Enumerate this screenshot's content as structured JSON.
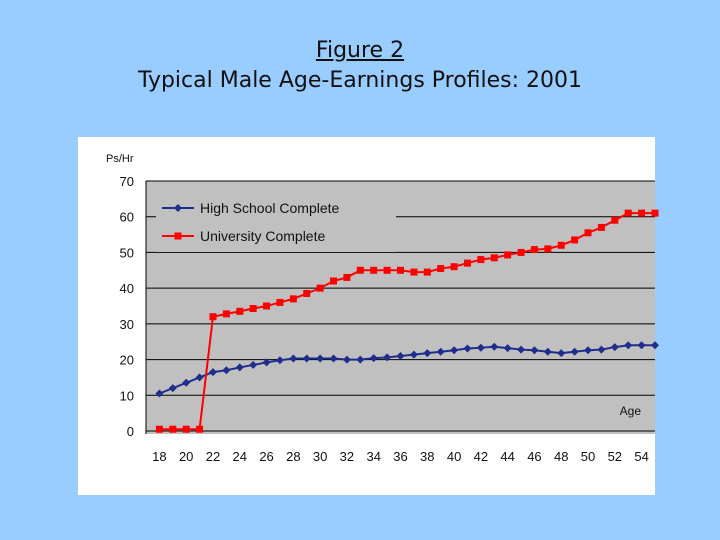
{
  "title": {
    "line1": "Figure 2",
    "line2": "Typical Male Age-Earnings Profiles: 2001"
  },
  "colors": {
    "background": "#99ccff",
    "plot_area": "#c0c0c0",
    "high_school": "#1f2d8c",
    "university": "#ff0000"
  },
  "chart_data": {
    "type": "line",
    "ylabel": "Ps/Hr",
    "xlabel": "Age",
    "ylim": [
      0,
      70
    ],
    "yticks": [
      0,
      10,
      20,
      30,
      40,
      50,
      60,
      70
    ],
    "xlim": [
      17,
      55
    ],
    "xticks": [
      18,
      20,
      22,
      24,
      26,
      28,
      30,
      32,
      34,
      36,
      38,
      40,
      42,
      44,
      46,
      48,
      50,
      52,
      54
    ],
    "legend_position": "top-left",
    "grid": "horizontal",
    "x": [
      18,
      19,
      20,
      21,
      22,
      23,
      24,
      25,
      26,
      27,
      28,
      29,
      30,
      31,
      32,
      33,
      34,
      35,
      36,
      37,
      38,
      39,
      40,
      41,
      42,
      43,
      44,
      45,
      46,
      47,
      48,
      49,
      50,
      51,
      52,
      53,
      54,
      55
    ],
    "series": [
      {
        "name": "High School Complete",
        "marker": "diamond",
        "values": [
          10.5,
          12,
          13.5,
          15,
          16.5,
          17,
          17.8,
          18.5,
          19.2,
          19.8,
          20.3,
          20.3,
          20.3,
          20.3,
          20,
          20,
          20.4,
          20.6,
          21,
          21.4,
          21.8,
          22.2,
          22.6,
          23.1,
          23.3,
          23.6,
          23.2,
          22.8,
          22.6,
          22.2,
          21.8,
          22.2,
          22.6,
          22.8,
          23.5,
          24,
          24,
          24
        ]
      },
      {
        "name": "University Complete",
        "marker": "square",
        "values": [
          0.5,
          0.5,
          0.5,
          0.5,
          32,
          32.8,
          33.5,
          34.3,
          35,
          36,
          37,
          38.5,
          40,
          42,
          43,
          45,
          45,
          45,
          45,
          44.5,
          44.5,
          45.5,
          46,
          47,
          48,
          48.5,
          49.3,
          50,
          50.8,
          51,
          52,
          53.5,
          55.5,
          57,
          59,
          61,
          61,
          61
        ]
      }
    ]
  }
}
